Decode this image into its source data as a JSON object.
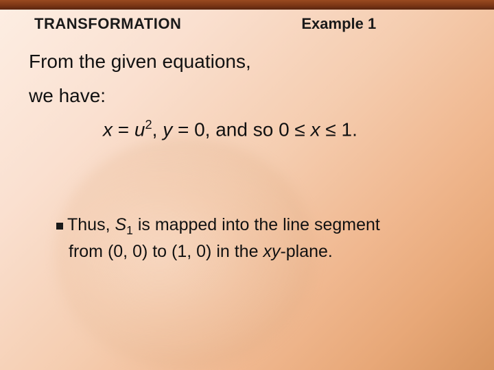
{
  "colors": {
    "topbar_gradient": [
      "#9a4a20",
      "#7a3515",
      "#5a2510"
    ],
    "bg_gradient": [
      "#fdeee3",
      "#fae0d0",
      "#f5cdb0",
      "#f0b890",
      "#e8a878",
      "#d89560"
    ],
    "text": "#1a1a1a"
  },
  "typography": {
    "heading_size_pt": 22,
    "body_size_pt": 28,
    "bullet_size_pt": 25,
    "family": "Arial"
  },
  "header": {
    "section": "TRANSFORMATION",
    "example": "Example 1"
  },
  "body": {
    "line1": "From the given equations,",
    "line2": "we have:",
    "equation": {
      "prefix_var": "x",
      "eq1_lhs_var": "u",
      "eq1_exp": "2",
      "mid": ", ",
      "eq2_var": "y",
      "eq2_val": " = 0, and so 0 ≤ ",
      "range_var": "x",
      "range_end": " ≤ 1."
    }
  },
  "bullet": {
    "lead": "Thus, ",
    "S": "S",
    "sub": "1",
    "after_sub": " is mapped into the line segment",
    "line2a": "from (0, 0) to (1, 0) in the ",
    "xy": "xy",
    "line2b": "-plane."
  }
}
